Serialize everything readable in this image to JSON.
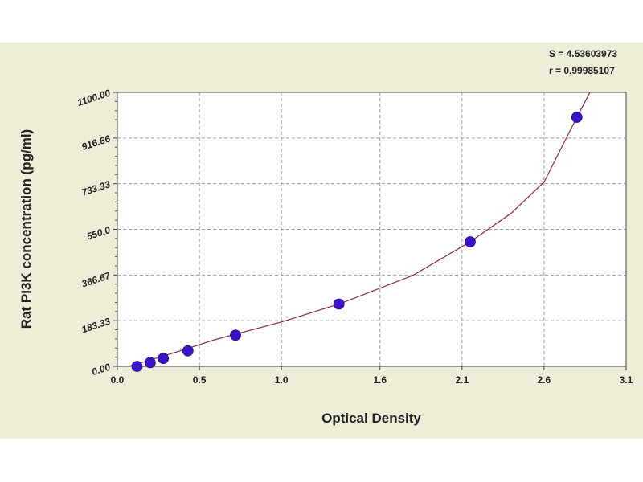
{
  "chart_data": {
    "type": "scatter",
    "xlabel": "Optical Density",
    "ylabel": "Rat PI3K concentration (pg/ml)",
    "xlim": [
      0.0,
      3.1
    ],
    "ylim": [
      0.0,
      1100.0
    ],
    "x_ticks": [
      0.0,
      0.5,
      1.0,
      1.6,
      2.1,
      2.6,
      3.1
    ],
    "x_tick_labels": [
      "0.0",
      "0.5",
      "1.0",
      "1.6",
      "2.1",
      "2.6",
      "3.1"
    ],
    "y_ticks": [
      0.0,
      183.33,
      366.67,
      550.0,
      733.33,
      916.66,
      1100.0
    ],
    "y_tick_labels": [
      "0.00",
      "183.33",
      "366.67",
      "550.0",
      "733.33",
      "916.66",
      "1100.00"
    ],
    "grid": true,
    "annotations": [
      "S = 4.53603973",
      "r = 0.99985107"
    ],
    "colors": {
      "point": "#3a12c8",
      "curve": "#8b2a3a",
      "grid": "#999999",
      "panel": "#ededd8"
    },
    "series": [
      {
        "points": [
          {
            "x": 0.12,
            "y": 0
          },
          {
            "x": 0.2,
            "y": 15
          },
          {
            "x": 0.28,
            "y": 32
          },
          {
            "x": 0.43,
            "y": 62
          },
          {
            "x": 0.72,
            "y": 125
          },
          {
            "x": 1.35,
            "y": 250
          },
          {
            "x": 2.15,
            "y": 500
          },
          {
            "x": 2.8,
            "y": 1000
          }
        ],
        "fit_curve": [
          {
            "x": 0.07,
            "y": 0
          },
          {
            "x": 0.3,
            "y": 45
          },
          {
            "x": 0.6,
            "y": 108
          },
          {
            "x": 1.0,
            "y": 178
          },
          {
            "x": 1.35,
            "y": 250
          },
          {
            "x": 1.8,
            "y": 365
          },
          {
            "x": 2.15,
            "y": 500
          },
          {
            "x": 2.4,
            "y": 615
          },
          {
            "x": 2.6,
            "y": 740
          },
          {
            "x": 2.8,
            "y": 1000
          },
          {
            "x": 2.88,
            "y": 1100
          }
        ]
      }
    ]
  }
}
